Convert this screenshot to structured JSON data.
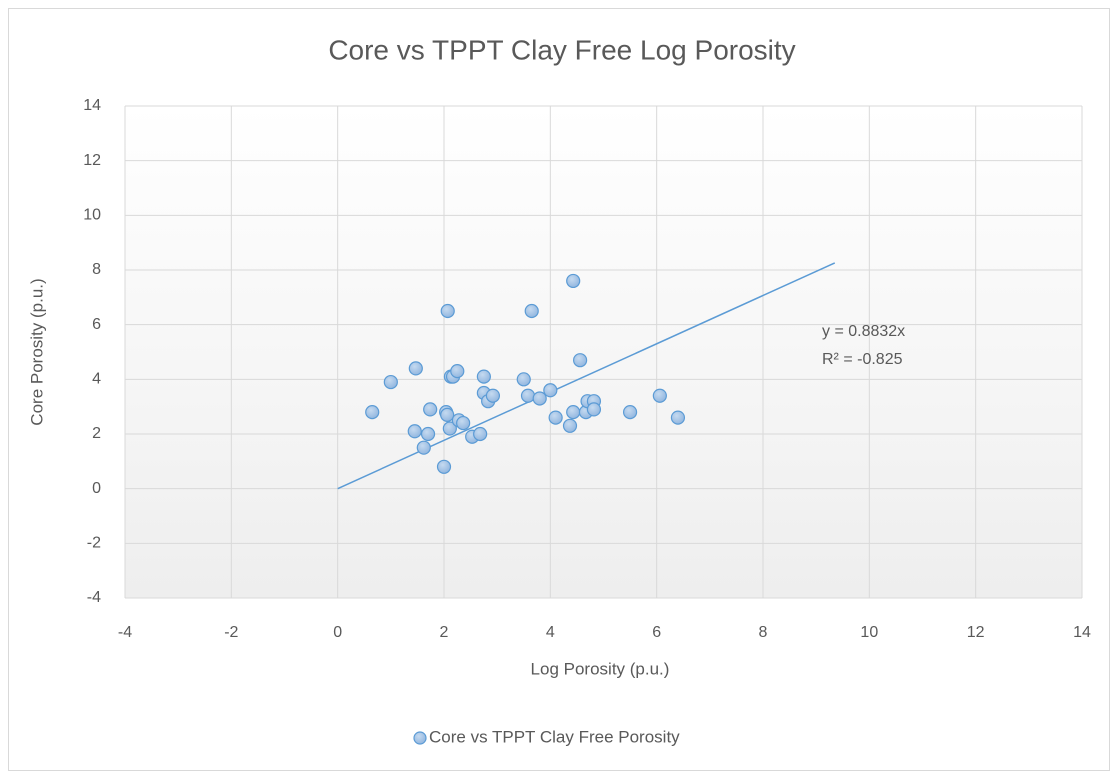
{
  "chart_data": {
    "type": "scatter",
    "title": "Core vs TPPT Clay Free Log Porosity",
    "x_label": "Log Porosity (p.u.)",
    "y_label": "Core Porosity (p.u.)",
    "xlim": [
      -4,
      14
    ],
    "ylim": [
      -4,
      14
    ],
    "xticks": [
      -4,
      -2,
      0,
      2,
      4,
      6,
      8,
      10,
      12,
      14
    ],
    "yticks": [
      -4,
      -2,
      0,
      2,
      4,
      6,
      8,
      10,
      12,
      14
    ],
    "grid": true,
    "legend": "bottom",
    "series": [
      {
        "name": "Core vs TPPT Clay Free Porosity",
        "color": "#5b9bd5",
        "x": [
          0.65,
          1.0,
          1.47,
          1.45,
          1.62,
          1.74,
          1.7,
          2.0,
          2.07,
          2.04,
          2.06,
          2.13,
          2.17,
          2.25,
          2.11,
          2.28,
          2.36,
          2.53,
          2.68,
          2.75,
          2.75,
          2.83,
          2.92,
          3.5,
          3.58,
          3.65,
          3.8,
          4.0,
          4.1,
          4.37,
          4.43,
          4.43,
          4.56,
          4.67,
          4.7,
          4.82,
          4.82,
          5.5,
          6.06,
          6.4
        ],
        "values": [
          2.8,
          3.9,
          4.4,
          2.1,
          1.5,
          2.9,
          2.0,
          0.8,
          6.5,
          2.8,
          2.7,
          4.1,
          4.1,
          4.3,
          2.2,
          2.5,
          2.4,
          1.9,
          2.0,
          4.1,
          3.5,
          3.2,
          3.4,
          4.0,
          3.4,
          6.5,
          3.3,
          3.6,
          2.6,
          2.3,
          2.8,
          7.6,
          4.7,
          2.8,
          3.2,
          3.2,
          2.9,
          2.8,
          3.4,
          2.6
        ]
      }
    ],
    "trendline": {
      "x": [
        0,
        9.35
      ],
      "y": [
        0,
        8.26
      ],
      "color": "#5b9bd5",
      "equation": "y = 0.8832x",
      "r_squared": "R² = -0.825"
    }
  }
}
